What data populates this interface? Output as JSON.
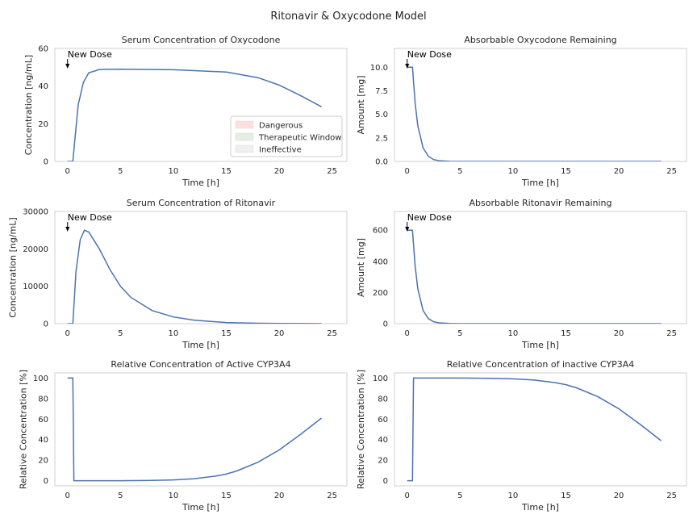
{
  "figure_title": "Ritonavir & Oxycodone Model",
  "chart_data": [
    {
      "type": "line",
      "title": "Serum Concentration of Oxycodone",
      "xlabel": "Time [h]",
      "ylabel": "Concentration [ng/mL]",
      "xlim": [
        -1.2,
        26.4
      ],
      "ylim": [
        0,
        60
      ],
      "xticks": [
        0,
        5,
        10,
        15,
        20,
        25
      ],
      "yticks": [
        0,
        20,
        40,
        60
      ],
      "ytick_labels": [
        "0",
        "20",
        "40",
        "60"
      ],
      "grid": true,
      "series": [
        {
          "x": [
            0,
            0.5,
            0.7,
            1.0,
            1.5,
            2.0,
            3.0,
            5.0,
            10.0,
            15.0,
            18.0,
            20.0,
            22.0,
            24.0
          ],
          "values": [
            0,
            0,
            12,
            30,
            42,
            47,
            48.8,
            49,
            48.7,
            47.5,
            44.5,
            40.5,
            35,
            29
          ]
        }
      ],
      "bands": [
        {
          "label": "Dangerous",
          "from": 40,
          "to": 60,
          "color": "#ffdede"
        },
        {
          "label": "Therapeutic Window",
          "from": 10,
          "to": 40,
          "color": "#e3efe1"
        },
        {
          "label": "Ineffective",
          "from": 0,
          "to": 10,
          "color": "#efefef"
        }
      ],
      "hlines": [
        40,
        10
      ],
      "legend": "lower right",
      "annotation": {
        "text": "New Dose",
        "x": 0
      }
    },
    {
      "type": "line",
      "title": "Absorbable Oxycodone Remaining",
      "xlabel": "Time [h]",
      "ylabel": "Amount [mg]",
      "xlim": [
        -1.2,
        26.4
      ],
      "ylim": [
        0,
        12
      ],
      "xticks": [
        0,
        5,
        10,
        15,
        20,
        25
      ],
      "yticks": [
        0,
        2.5,
        5,
        7.5,
        10
      ],
      "ytick_labels": [
        "0.0",
        "2.5",
        "5.0",
        "7.5",
        "10.0"
      ],
      "grid": true,
      "series": [
        {
          "x": [
            0,
            0.5,
            0.75,
            1.0,
            1.5,
            2.0,
            2.5,
            3.0,
            4.0,
            5.0,
            8.0,
            24.0
          ],
          "values": [
            10,
            10,
            6.2,
            3.8,
            1.45,
            0.55,
            0.2,
            0.08,
            0.01,
            0,
            0,
            0
          ]
        }
      ],
      "annotation": {
        "text": "New Dose",
        "x": 0
      }
    },
    {
      "type": "line",
      "title": "Serum Concentration of Ritonavir",
      "xlabel": "Time [h]",
      "ylabel": "Concentration [ng/mL]",
      "xlim": [
        -1.2,
        26.4
      ],
      "ylim": [
        0,
        30000
      ],
      "xticks": [
        0,
        5,
        10,
        15,
        20,
        25
      ],
      "yticks": [
        0,
        10000,
        20000,
        30000
      ],
      "ytick_labels": [
        "0",
        "10000",
        "20000",
        "30000"
      ],
      "grid": true,
      "series": [
        {
          "x": [
            0,
            0.5,
            0.8,
            1.2,
            1.6,
            2.0,
            3.0,
            4.0,
            5.0,
            6.0,
            8.0,
            10.0,
            12.0,
            15.0,
            18.0,
            20.0,
            24.0
          ],
          "values": [
            0,
            0,
            14000,
            22500,
            25000,
            24500,
            20000,
            14500,
            10000,
            7000,
            3500,
            1800,
            900,
            300,
            100,
            40,
            0
          ]
        }
      ],
      "annotation": {
        "text": "New Dose",
        "x": 0
      }
    },
    {
      "type": "line",
      "title": "Absorbable Ritonavir Remaining",
      "xlabel": "Time [h]",
      "ylabel": "Amount [mg]",
      "xlim": [
        -1.2,
        26.4
      ],
      "ylim": [
        0,
        720
      ],
      "xticks": [
        0,
        5,
        10,
        15,
        20,
        25
      ],
      "yticks": [
        0,
        200,
        400,
        600
      ],
      "ytick_labels": [
        "0",
        "200",
        "400",
        "600"
      ],
      "grid": true,
      "series": [
        {
          "x": [
            0,
            0.5,
            0.75,
            1.0,
            1.5,
            2.0,
            2.5,
            3.0,
            4.0,
            5.0,
            8.0,
            24.0
          ],
          "values": [
            600,
            600,
            370,
            225,
            85,
            32,
            12,
            5,
            1,
            0,
            0,
            0
          ]
        }
      ],
      "annotation": {
        "text": "New Dose",
        "x": 0
      }
    },
    {
      "type": "line",
      "title": "Relative Concentration of Active CYP3A4",
      "xlabel": "Time [h]",
      "ylabel": "Relative Concentration [%]",
      "xlim": [
        -1.2,
        26.4
      ],
      "ylim": [
        -5,
        105
      ],
      "xticks": [
        0,
        5,
        10,
        15,
        20,
        25
      ],
      "yticks": [
        0,
        20,
        40,
        60,
        80,
        100
      ],
      "ytick_labels": [
        "0",
        "20",
        "40",
        "60",
        "80",
        "100"
      ],
      "grid": true,
      "series": [
        {
          "x": [
            0,
            0.5,
            0.6,
            1.0,
            5.0,
            8.0,
            10.0,
            12.0,
            14.0,
            15.0,
            16.0,
            18.0,
            20.0,
            22.0,
            24.0
          ],
          "values": [
            100,
            100,
            0,
            0,
            0,
            0.3,
            0.8,
            2,
            4.5,
            6.5,
            9.5,
            18,
            30,
            45,
            61
          ]
        }
      ]
    },
    {
      "type": "line",
      "title": "Relative Concentration of inactive CYP3A4",
      "xlabel": "Time [h]",
      "ylabel": "Relative Concentration [%]",
      "xlim": [
        -1.2,
        26.4
      ],
      "ylim": [
        -5,
        105
      ],
      "xticks": [
        0,
        5,
        10,
        15,
        20,
        25
      ],
      "yticks": [
        0,
        20,
        40,
        60,
        80,
        100
      ],
      "ytick_labels": [
        "0",
        "20",
        "40",
        "60",
        "80",
        "100"
      ],
      "grid": true,
      "series": [
        {
          "x": [
            0,
            0.5,
            0.6,
            1.0,
            5.0,
            8.0,
            10.0,
            12.0,
            14.0,
            15.0,
            16.0,
            18.0,
            20.0,
            22.0,
            24.0
          ],
          "values": [
            0,
            0,
            100,
            100,
            100,
            99.7,
            99.2,
            98,
            95.5,
            93.5,
            90.5,
            82,
            70,
            55,
            39
          ]
        }
      ]
    }
  ]
}
